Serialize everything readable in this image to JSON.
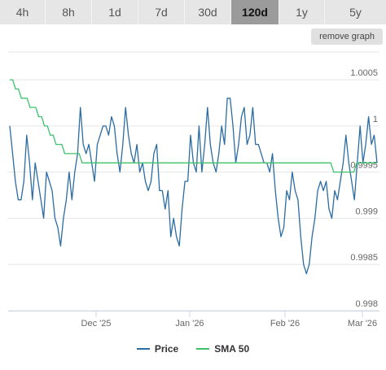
{
  "tabs": [
    {
      "label": "4h",
      "active": false
    },
    {
      "label": "8h",
      "active": false
    },
    {
      "label": "1d",
      "active": false
    },
    {
      "label": "7d",
      "active": false
    },
    {
      "label": "30d",
      "active": false
    },
    {
      "label": "120d",
      "active": true
    },
    {
      "label": "1y",
      "active": false
    },
    {
      "label": "5y",
      "active": false
    }
  ],
  "remove_graph_label": "remove graph",
  "colors": {
    "price": "#2b6ca3",
    "sma": "#3cc36a",
    "grid": "#e6e6e6",
    "axis": "#ccd6eb"
  },
  "chart_data": {
    "type": "line",
    "x_tick_labels": [
      "Dec '25",
      "Jan '26",
      "Feb '26",
      "Mar '26"
    ],
    "y_tick_labels": [
      "0.998",
      "0.9985",
      "0.999",
      "0.9995",
      "1",
      "1.0005"
    ],
    "ylim": [
      0.998,
      1.0008
    ],
    "grid": true,
    "legend_position": "bottom",
    "series": [
      {
        "name": "Price",
        "values": [
          1.0,
          0.9997,
          0.9994,
          0.9992,
          0.9992,
          0.9994,
          0.9999,
          0.9996,
          0.9992,
          0.9996,
          0.9994,
          0.9992,
          0.999,
          0.9995,
          0.9994,
          0.9993,
          0.999,
          0.9989,
          0.9987,
          0.999,
          0.9992,
          0.9995,
          0.9992,
          0.9995,
          0.9997,
          1.0002,
          0.9998,
          0.9997,
          0.9998,
          0.9996,
          0.9994,
          0.9998,
          0.9999,
          1.0,
          1.0,
          0.9999,
          1.0001,
          1.0,
          0.9997,
          0.9995,
          0.9998,
          1.0002,
          0.9999,
          0.9997,
          0.9996,
          0.9998,
          0.9995,
          0.9996,
          0.9994,
          0.9993,
          0.9994,
          0.9997,
          0.9998,
          0.9993,
          0.9993,
          0.9991,
          0.9993,
          0.9988,
          0.999,
          0.9988,
          0.9987,
          0.9991,
          0.9994,
          0.9994,
          0.9999,
          0.9996,
          0.9995,
          1.0,
          0.9995,
          0.9998,
          1.0002,
          0.9998,
          0.9996,
          0.9995,
          0.9997,
          1.0,
          0.9998,
          1.0003,
          1.0003,
          1.0,
          0.9996,
          0.9998,
          1.0001,
          1.0002,
          0.9998,
          0.9999,
          1.0002,
          0.9998,
          0.9998,
          0.9997,
          0.9996,
          0.9996,
          0.9995,
          0.9997,
          0.9993,
          0.999,
          0.9988,
          0.9989,
          0.9993,
          0.9992,
          0.9995,
          0.9993,
          0.9992,
          0.9988,
          0.9985,
          0.9984,
          0.9985,
          0.9988,
          0.999,
          0.9993,
          0.9994,
          0.9993,
          0.9994,
          0.9991,
          0.999,
          0.9993,
          0.9992,
          0.9994,
          0.9996,
          0.9999,
          0.9996,
          0.9994,
          0.9992,
          0.9996,
          1.0,
          0.9996,
          0.9998,
          1.0001,
          0.9998,
          0.9999,
          0.9996
        ]
      },
      {
        "name": "SMA 50",
        "values": [
          1.0005,
          1.0005,
          1.0004,
          1.0004,
          1.0003,
          1.0003,
          1.0003,
          1.0002,
          1.0002,
          1.0002,
          1.0001,
          1.0001,
          1.0,
          1.0,
          0.9999,
          0.9999,
          0.9998,
          0.9998,
          0.9998,
          0.9997,
          0.9997,
          0.9997,
          0.9997,
          0.9997,
          0.9997,
          0.9996,
          0.9996,
          0.9996,
          0.9996,
          0.9996,
          0.9996,
          0.9996,
          0.9996,
          0.9996,
          0.9996,
          0.9996,
          0.9996,
          0.9996,
          0.9996,
          0.9996,
          0.9996,
          0.9996,
          0.9996,
          0.9996,
          0.9996,
          0.9996,
          0.9996,
          0.9996,
          0.9996,
          0.9996,
          0.9996,
          0.9996,
          0.9996,
          0.9996,
          0.9996,
          0.9996,
          0.9996,
          0.9996,
          0.9996,
          0.9996,
          0.9996,
          0.9996,
          0.9996,
          0.9996,
          0.9996,
          0.9996,
          0.9996,
          0.9996,
          0.9996,
          0.9996,
          0.9996,
          0.9996,
          0.9996,
          0.9996,
          0.9996,
          0.9996,
          0.9996,
          0.9996,
          0.9996,
          0.9996,
          0.9996,
          0.9996,
          0.9996,
          0.9996,
          0.9996,
          0.9996,
          0.9996,
          0.9996,
          0.9996,
          0.9996,
          0.9996,
          0.9996,
          0.9996,
          0.9996,
          0.9996,
          0.9996,
          0.9996,
          0.9996,
          0.9996,
          0.9996,
          0.9996,
          0.9996,
          0.9996,
          0.9996,
          0.9996,
          0.9996,
          0.9996,
          0.9996,
          0.9996,
          0.9996,
          0.9996,
          0.9996,
          0.9995,
          0.9995,
          0.9995,
          0.9995,
          0.9995,
          0.9995,
          0.9995,
          0.9995,
          0.9996,
          0.9996,
          0.9996,
          0.9996,
          0.9996,
          0.9996,
          0.9996,
          0.9996
        ]
      }
    ]
  }
}
